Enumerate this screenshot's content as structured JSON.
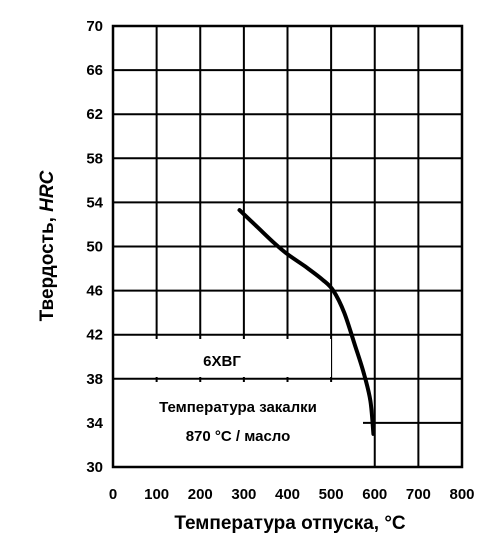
{
  "chart_data": {
    "type": "line",
    "xlabel": "Температура отпуска, °С",
    "ylabel_main": "Твердость, ",
    "ylabel_italic": "HRC",
    "xlim": [
      0,
      800
    ],
    "ylim": [
      30,
      70
    ],
    "x_ticks": [
      0,
      100,
      200,
      300,
      400,
      500,
      600,
      700,
      800
    ],
    "y_ticks": [
      30,
      34,
      38,
      42,
      46,
      50,
      54,
      58,
      62,
      66,
      70
    ],
    "grid": true,
    "series": [
      {
        "x": [
          290,
          330,
          370,
          400,
          440,
          480,
          505,
          530,
          555,
          575,
          590,
          597
        ],
        "y": [
          53.3,
          51.8,
          50.3,
          49.3,
          48.2,
          47.0,
          46.0,
          44.0,
          41.0,
          38.5,
          36.0,
          33.0
        ]
      }
    ],
    "annotations": {
      "steel": "6ХВГ",
      "quench_line1": "Температура закалки",
      "quench_line2": "870 °С / масло"
    }
  }
}
